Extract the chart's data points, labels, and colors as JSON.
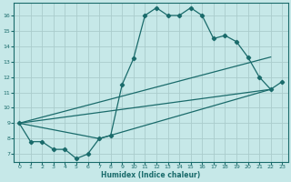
{
  "xlabel": "Humidex (Indice chaleur)",
  "background_color": "#c6e8e8",
  "grid_color": "#aacccc",
  "line_color": "#1a6b6b",
  "xlim": [
    -0.5,
    23.5
  ],
  "ylim": [
    6.5,
    16.8
  ],
  "yticks": [
    7,
    8,
    9,
    10,
    11,
    12,
    13,
    14,
    15,
    16
  ],
  "xticks": [
    0,
    1,
    2,
    3,
    4,
    5,
    6,
    7,
    8,
    9,
    10,
    11,
    12,
    13,
    14,
    15,
    16,
    17,
    18,
    19,
    20,
    21,
    22,
    23
  ],
  "curve_x": [
    0,
    1,
    2,
    3,
    4,
    5,
    6,
    7,
    8,
    9,
    10,
    11,
    12,
    13,
    14,
    15,
    16,
    17,
    18,
    19,
    20,
    21,
    22,
    23
  ],
  "curve_y": [
    9.0,
    7.8,
    7.8,
    7.3,
    7.3,
    6.7,
    7.0,
    8.0,
    8.2,
    11.5,
    13.2,
    16.0,
    16.5,
    16.0,
    16.0,
    16.5,
    16.0,
    14.5,
    14.7,
    14.3,
    13.3,
    12.0,
    11.2,
    11.7
  ],
  "line1_x": [
    0,
    22
  ],
  "line1_y": [
    9.0,
    11.2
  ],
  "line2_x": [
    0,
    7,
    22
  ],
  "line2_y": [
    9.0,
    8.0,
    11.2
  ],
  "line3_x": [
    0,
    22
  ],
  "line3_y": [
    9.0,
    13.3
  ]
}
